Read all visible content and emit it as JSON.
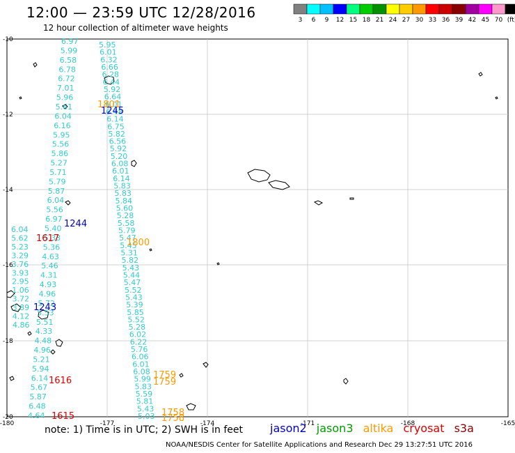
{
  "title": "12:00 — 23:59 UTC 12/28/2016",
  "subtitle": "12 hour collection of altimeter wave heights",
  "colorbar": {
    "labels": [
      "3",
      "6",
      "9",
      "12",
      "15",
      "18",
      "21",
      "24",
      "27",
      "30",
      "33",
      "36",
      "39",
      "42",
      "45",
      "70",
      "(ft)"
    ],
    "colors": [
      "#808080",
      "#00ffff",
      "#00c0ff",
      "#0000ff",
      "#00ff80",
      "#00cc00",
      "#009000",
      "#ffff00",
      "#ffcc00",
      "#ff9900",
      "#ff0000",
      "#cc0000",
      "#880000",
      "#a000a0",
      "#ff00ff",
      "#ff99cc",
      "#000000"
    ]
  },
  "axes": {
    "lon_ticks": [
      "-180",
      "-177",
      "-174",
      "-171",
      "-168",
      "-165"
    ],
    "lat_ticks": [
      "-10",
      "-12",
      "-14",
      "-16",
      "-18",
      "-20"
    ]
  },
  "wave_heights": {
    "color": "#33cccc",
    "track_left_a": [
      "6.97",
      "5.99",
      "6.58",
      "6.78",
      "6.72",
      "7.01",
      "5.96",
      "5.61",
      "6.04",
      "6.16",
      "5.95",
      "5.56",
      "5.86",
      "5.27",
      "5.71",
      "5.79",
      "5.87",
      "6.04",
      "5.56",
      "6.97",
      "5.40",
      "5.33",
      "5.36",
      "4.63",
      "5.46",
      "4.31",
      "4.93",
      "4.96",
      "5.72",
      "5.53",
      "5.51",
      "4.33",
      "4.48",
      "4.96",
      "5.21",
      "5.94",
      "6.14",
      "5.67",
      "5.87",
      "6.48",
      "4.64"
    ],
    "track_left_b": [
      "6.04",
      "5.62",
      "5.23",
      "3.29",
      "3.76",
      "3.93",
      "2.95",
      "1.06",
      "3.72",
      "3.89",
      "4.12",
      "4.86"
    ],
    "track_right": [
      "5.95",
      "6.01",
      "6.32",
      "6.66",
      "6.28",
      "6.44",
      "5.92",
      "6.64",
      "6.01",
      "6.48",
      "6.14",
      "6.75",
      "5.82",
      "6.56",
      "5.92",
      "5.20",
      "6.08",
      "6.01",
      "6.14",
      "5.83",
      "5.83",
      "5.84",
      "5.60",
      "5.28",
      "5.58",
      "5.79",
      "5.47",
      "5.45",
      "5.31",
      "5.82",
      "5.43",
      "5.44",
      "5.47",
      "5.52",
      "5.43",
      "5.39",
      "5.85",
      "5.52",
      "5.28",
      "6.02",
      "6.22",
      "5.76",
      "6.06",
      "6.01",
      "6.08",
      "5.99",
      "5.83",
      "5.59",
      "5.81",
      "5.43",
      "5.03"
    ]
  },
  "pass_times": [
    {
      "label": "1801",
      "color": "#ff9900"
    },
    {
      "label": "1245",
      "color": "#0000cc"
    },
    {
      "label": "1244",
      "color": "#0000cc"
    },
    {
      "label": "1617",
      "color": "#dd0000"
    },
    {
      "label": "1800",
      "color": "#ff9900"
    },
    {
      "label": "1243",
      "color": "#0000cc"
    },
    {
      "label": "1616",
      "color": "#dd0000"
    },
    {
      "label": "1615",
      "color": "#dd0000"
    },
    {
      "label": "1759",
      "color": "#ff9900"
    },
    {
      "label": "1759",
      "color": "#ff9900"
    },
    {
      "label": "1758",
      "color": "#ff9900"
    },
    {
      "label": "1758",
      "color": "#ff9900"
    }
  ],
  "note": "note:  1) Time is in UTC; 2) SWH is in feet",
  "legend": [
    {
      "name": "jason2",
      "color": "#0000cc"
    },
    {
      "name": "jason3",
      "color": "#009900"
    },
    {
      "name": "altika",
      "color": "#ff9900"
    },
    {
      "name": "cryosat",
      "color": "#dd0000"
    },
    {
      "name": "s3a",
      "color": "#880000"
    }
  ],
  "credit": "NOAA/NESDIS Center for Satellite Applications and Research     Dec 29 13:27:51 UTC 2016"
}
